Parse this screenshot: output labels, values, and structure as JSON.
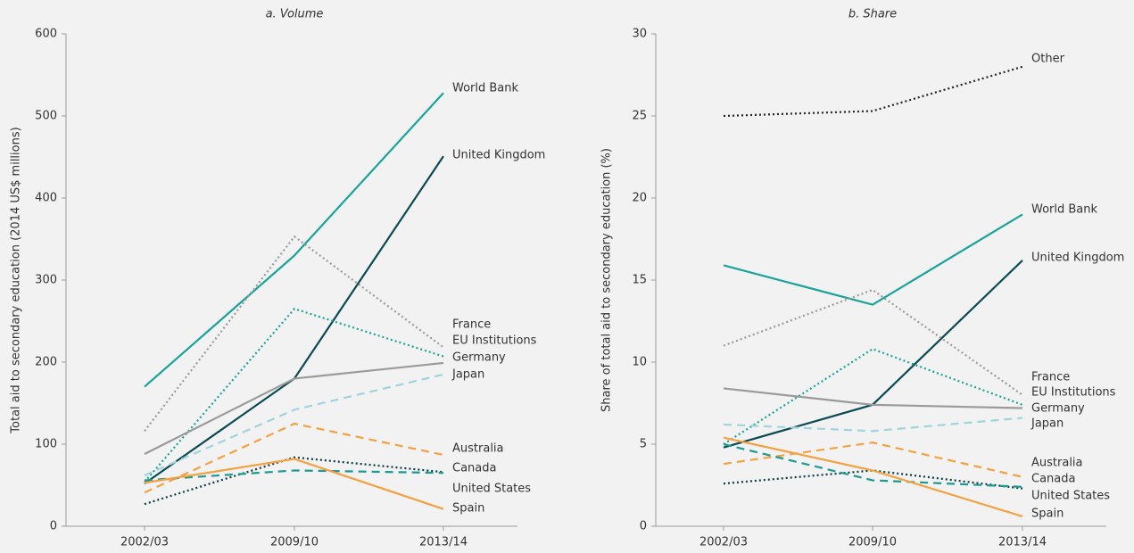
{
  "chart_data": [
    {
      "type": "line",
      "title": "a. Volume",
      "y_label": "Total aid to secondary education (2014 US$ millions)",
      "categories": [
        "2002/03",
        "2009/10",
        "2013/14"
      ],
      "ylim": [
        0,
        600
      ],
      "yticks": [
        0,
        100,
        200,
        300,
        400,
        500,
        600
      ],
      "series": [
        {
          "name": "World Bank",
          "color": "#1aa39a",
          "style": "solid",
          "values": [
            170,
            330,
            528
          ]
        },
        {
          "name": "United Kingdom",
          "color": "#0b4a52",
          "style": "solid",
          "values": [
            52,
            180,
            451
          ]
        },
        {
          "name": "France",
          "color": "#9a9a9a",
          "style": "dotted",
          "values": [
            116,
            353,
            218
          ]
        },
        {
          "name": "EU Institutions",
          "color": "#1aa39a",
          "style": "dotted",
          "values": [
            54,
            265,
            207
          ]
        },
        {
          "name": "Germany",
          "color": "#9a9a9a",
          "style": "solid",
          "values": [
            88,
            180,
            199
          ]
        },
        {
          "name": "Japan",
          "color": "#9fd4dc",
          "style": "dashed",
          "values": [
            62,
            142,
            185
          ]
        },
        {
          "name": "Australia",
          "color": "#f5a142",
          "style": "dashed",
          "values": [
            41,
            125,
            87
          ]
        },
        {
          "name": "Canada",
          "color": "#0b3a42",
          "style": "dotted",
          "values": [
            27,
            84,
            66
          ]
        },
        {
          "name": "United States",
          "color": "#1a9a92",
          "style": "dashed",
          "values": [
            56,
            68,
            65
          ]
        },
        {
          "name": "Spain",
          "color": "#f5a142",
          "style": "solid",
          "values": [
            53,
            82,
            21
          ]
        }
      ]
    },
    {
      "type": "line",
      "title": "b. Share",
      "y_label": "Share of total aid to secondary education (%)",
      "categories": [
        "2002/03",
        "2009/10",
        "2013/14"
      ],
      "ylim": [
        0,
        30
      ],
      "yticks": [
        0,
        5,
        10,
        15,
        20,
        25,
        30
      ],
      "series": [
        {
          "name": "Other",
          "color": "#222222",
          "style": "dotted",
          "values": [
            25,
            25.3,
            28
          ]
        },
        {
          "name": "World Bank",
          "color": "#1aa39a",
          "style": "solid",
          "values": [
            15.9,
            13.5,
            19
          ]
        },
        {
          "name": "United Kingdom",
          "color": "#0b4a52",
          "style": "solid",
          "values": [
            4.8,
            7.4,
            16.2
          ]
        },
        {
          "name": "France",
          "color": "#9a9a9a",
          "style": "dotted",
          "values": [
            11,
            14.4,
            8
          ]
        },
        {
          "name": "EU Institutions",
          "color": "#1aa39a",
          "style": "dotted",
          "values": [
            5,
            10.8,
            7.4
          ]
        },
        {
          "name": "Germany",
          "color": "#9a9a9a",
          "style": "solid",
          "values": [
            8.4,
            7.4,
            7.2
          ]
        },
        {
          "name": "Japan",
          "color": "#9fd4dc",
          "style": "dashed",
          "values": [
            6.2,
            5.8,
            6.6
          ]
        },
        {
          "name": "Australia",
          "color": "#f5a142",
          "style": "dashed",
          "values": [
            3.8,
            5.1,
            3
          ]
        },
        {
          "name": "Canada",
          "color": "#0b3a42",
          "style": "dotted",
          "values": [
            2.6,
            3.4,
            2.3
          ]
        },
        {
          "name": "United States",
          "color": "#1a9a92",
          "style": "dashed",
          "values": [
            5,
            2.8,
            2.4
          ]
        },
        {
          "name": "Spain",
          "color": "#f5a142",
          "style": "solid",
          "values": [
            5.4,
            3.4,
            0.6
          ]
        }
      ]
    }
  ]
}
